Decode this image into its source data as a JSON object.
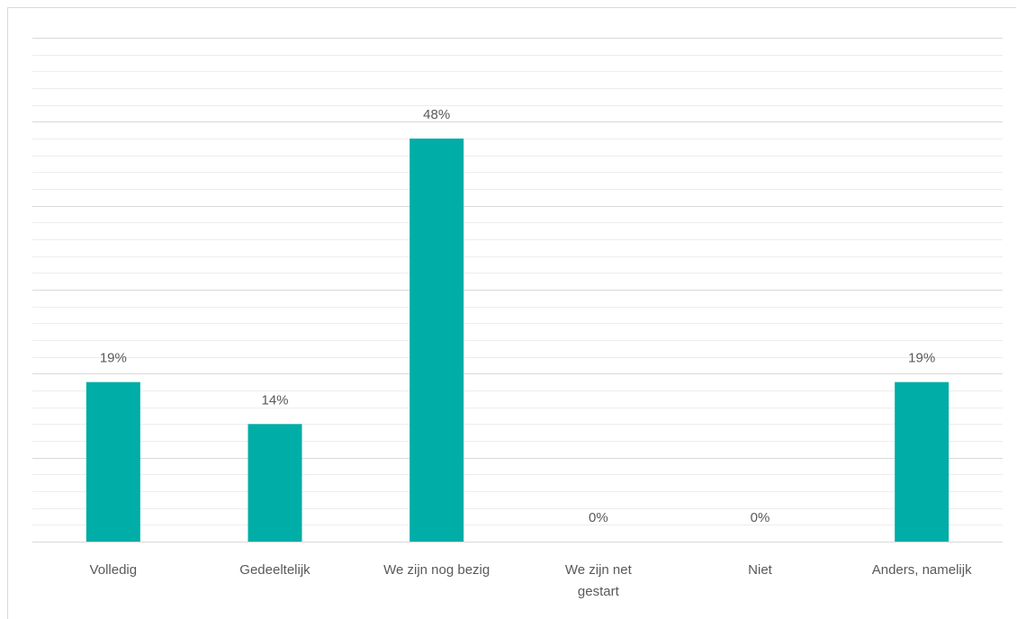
{
  "colors": {
    "bar": "#00ADA7",
    "gridline_major": "#d9d9d9",
    "gridline_minor": "#ededed",
    "text": "#595959"
  },
  "chart_data": {
    "type": "bar",
    "title": "",
    "xlabel": "",
    "ylabel": "",
    "categories": [
      [
        "Volledig"
      ],
      [
        "Gedeeltelijk"
      ],
      [
        "We zijn nog bezig"
      ],
      [
        "We zijn net",
        "gestart"
      ],
      [
        "Niet"
      ],
      [
        "Anders, namelijk"
      ]
    ],
    "values": [
      19,
      14,
      48,
      0,
      0,
      19
    ],
    "data_labels": [
      "19%",
      "14%",
      "48%",
      "0%",
      "0%",
      "19%"
    ],
    "ylim": [
      0,
      60
    ],
    "y_axis_visible": false,
    "grid": true,
    "legend": "none"
  }
}
